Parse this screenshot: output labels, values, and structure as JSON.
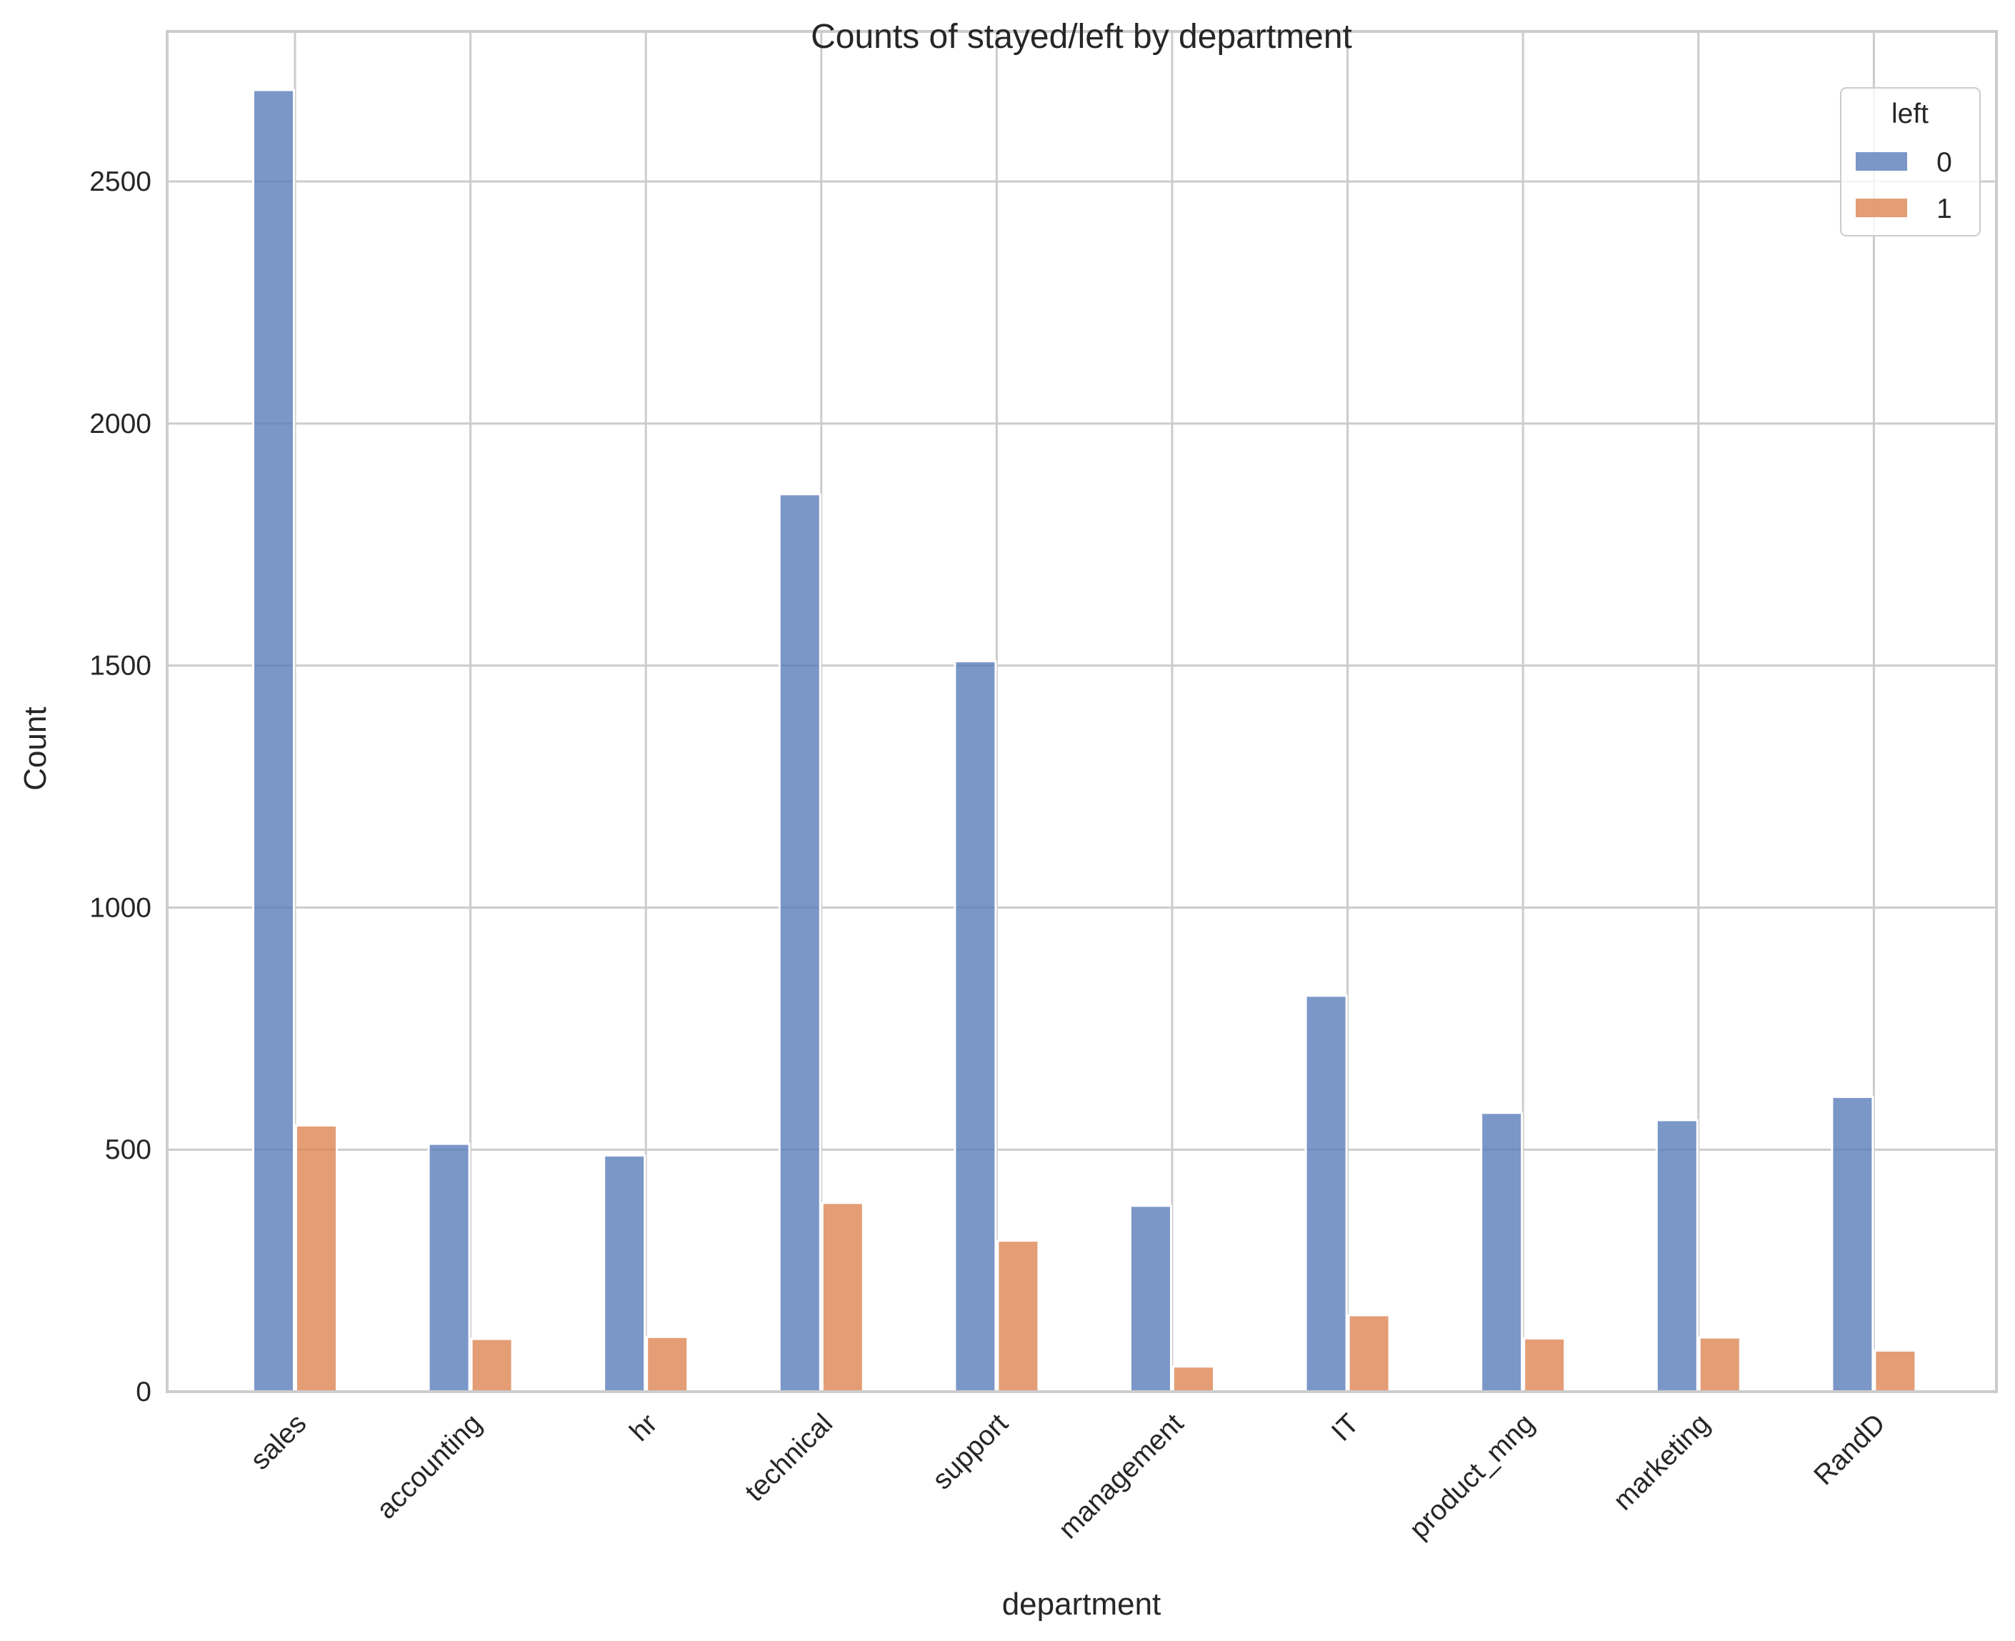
{
  "chart_data": {
    "type": "bar",
    "title": "Counts of stayed/left by department",
    "xlabel": "department",
    "ylabel": "Count",
    "ylim": [
      0,
      2810
    ],
    "yticks": [
      0,
      500,
      1000,
      1500,
      2000,
      2500
    ],
    "ytick_labels": [
      "0",
      "500",
      "1000",
      "1500",
      "2000",
      "2500"
    ],
    "categories": [
      "sales",
      "accounting",
      "hr",
      "technical",
      "support",
      "management",
      "IT",
      "product_mng",
      "marketing",
      "RandD"
    ],
    "series": [
      {
        "name": "0",
        "color": "#5a7dba",
        "values": [
          2689,
          512,
          488,
          1854,
          1509,
          384,
          818,
          576,
          561,
          609
        ]
      },
      {
        "name": "1",
        "color": "#dd8452",
        "values": [
          550,
          109,
          113,
          390,
          312,
          52,
          158,
          110,
          112,
          85
        ]
      }
    ],
    "legend": {
      "title": "left",
      "position": "top-right"
    },
    "grid": true
  }
}
